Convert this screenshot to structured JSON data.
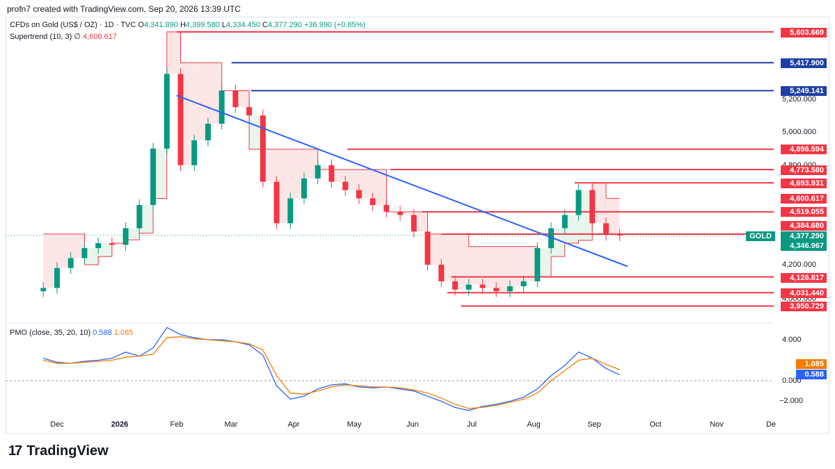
{
  "header": {
    "caption": "profn7 created with TradingView.com, Sep 20, 2026 13:39 UTC"
  },
  "legend": {
    "symbol": "CFDs on Gold (US$ / OZ) · 1D · TVC",
    "open_label": "O",
    "open": "4,341.890",
    "high_label": "H",
    "high": "4,399.580",
    "low_label": "L",
    "low": "4,334.450",
    "close_label": "C",
    "close": "4,377.290",
    "change": "+36.990 (+0.85%)",
    "supertrend_name": "Supertrend (10, 3)",
    "supertrend_symbol": "∅",
    "supertrend_value": "4,600.617",
    "pmo_name": "PMO (close, 35, 20, 10)",
    "pmo_value": "0.588",
    "pmo_signal": "1.085"
  },
  "price_axis_ticks": [
    "5,200.000",
    "5,000.000",
    "4,800.000",
    "4,200.000",
    "4,000.000"
  ],
  "price_tags": [
    {
      "text": "5,603.669",
      "color": "#f23645"
    },
    {
      "text": "5,417.900",
      "color": "#1e3ea8"
    },
    {
      "text": "5,249.141",
      "color": "#1e3ea8"
    },
    {
      "text": "4,896.594",
      "color": "#f23645"
    },
    {
      "text": "4,773.580",
      "color": "#f23645"
    },
    {
      "text": "4,693.931",
      "color": "#f23645"
    },
    {
      "text": "4,600.617",
      "color": "#f23645"
    },
    {
      "text": "4,519.055",
      "color": "#f23645"
    },
    {
      "text": "4,384.680",
      "color": "#f23645"
    },
    {
      "text": "4,377.290",
      "color": "#089981"
    },
    {
      "text": "4,346.967",
      "color": "#089981"
    },
    {
      "text": "4,126.817",
      "color": "#f23645"
    },
    {
      "text": "4,031.440",
      "color": "#f23645"
    },
    {
      "text": "3,950.729",
      "color": "#f23645"
    }
  ],
  "symbol_tag": "GOLD",
  "pmo_axis_ticks": [
    "4.000",
    "0.000",
    "−2.000"
  ],
  "pmo_tags": [
    {
      "text": "1.085",
      "color": "#f57c00"
    },
    {
      "text": "0.588",
      "color": "#2962ff"
    }
  ],
  "months": [
    "Dec",
    "2026",
    "Feb",
    "Mar",
    "Apr",
    "May",
    "Jun",
    "Jul",
    "Aug",
    "Sep",
    "Oct",
    "Nov",
    "De"
  ],
  "footer": {
    "logo_mark": "17",
    "brand": "TradingView"
  },
  "colors": {
    "up": "#089981",
    "down": "#f23645",
    "trendline": "#2962ff",
    "pmo": "#2962ff",
    "pmo_signal": "#f57c00",
    "supertrend_up_fill": "#e6f4ea",
    "supertrend_down_fill": "#fde3e3"
  },
  "chart_data": [
    {
      "type": "candlestick",
      "title": "CFDs on Gold (US$ / OZ) · 1D · TVC",
      "ylim": [
        3900,
        5650
      ],
      "x": [
        "2025-11-24",
        "2025-12-01",
        "2025-12-08",
        "2025-12-15",
        "2025-12-22",
        "2025-12-29",
        "2026-01-05",
        "2026-01-12",
        "2026-01-19",
        "2026-01-26",
        "2026-02-02",
        "2026-02-09",
        "2026-02-16",
        "2026-02-23",
        "2026-03-02",
        "2026-03-09",
        "2026-03-16",
        "2026-03-23",
        "2026-03-30",
        "2026-04-06",
        "2026-04-13",
        "2026-04-20",
        "2026-04-27",
        "2026-05-04",
        "2026-05-11",
        "2026-05-18",
        "2026-05-25",
        "2026-06-01",
        "2026-06-08",
        "2026-06-15",
        "2026-06-22",
        "2026-06-29",
        "2026-07-06",
        "2026-07-13",
        "2026-07-20",
        "2026-07-27",
        "2026-08-03",
        "2026-08-10",
        "2026-08-17",
        "2026-08-24",
        "2026-08-31",
        "2026-09-07",
        "2026-09-14"
      ],
      "close": [
        4060,
        4180,
        4240,
        4300,
        4330,
        4320,
        4420,
        4560,
        4900,
        5350,
        4800,
        4950,
        5050,
        5250,
        5150,
        5100,
        4700,
        4450,
        4600,
        4720,
        4800,
        4700,
        4650,
        4600,
        4560,
        4520,
        4500,
        4400,
        4200,
        4100,
        4050,
        4080,
        4060,
        4040,
        4070,
        4100,
        4300,
        4420,
        4500,
        4650,
        4450,
        4380,
        4377.29
      ],
      "supertrend": [
        4384.68,
        4384.68,
        4384.68,
        4200,
        4250,
        4330,
        4350,
        4390,
        4600,
        5603.669,
        5417.9,
        5417.9,
        5417.9,
        5249.141,
        5249.141,
        4896.594,
        4896.594,
        4896.594,
        4896.594,
        4896.594,
        4773.58,
        4773.58,
        4773.58,
        4773.58,
        4773.58,
        4519.055,
        4519.055,
        4519.055,
        4384.68,
        4384.68,
        4384.68,
        4310,
        4310,
        4310,
        4310,
        4310,
        4126.817,
        4250,
        4330,
        4346.967,
        4693.931,
        4600.617,
        4600.617
      ],
      "trendline": {
        "x": [
          "2026-01-31",
          "2026-09-18"
        ],
        "y": [
          5220,
          4190
        ]
      }
    },
    {
      "type": "line",
      "title": "PMO (close, 35, 20, 10)",
      "ylim": [
        -3,
        5
      ],
      "x": [
        "2025-11-24",
        "2025-12-01",
        "2025-12-08",
        "2025-12-15",
        "2025-12-22",
        "2025-12-29",
        "2026-01-05",
        "2026-01-12",
        "2026-01-19",
        "2026-01-26",
        "2026-02-02",
        "2026-02-09",
        "2026-02-16",
        "2026-02-23",
        "2026-03-02",
        "2026-03-09",
        "2026-03-16",
        "2026-03-23",
        "2026-03-30",
        "2026-04-06",
        "2026-04-13",
        "2026-04-20",
        "2026-04-27",
        "2026-05-04",
        "2026-05-11",
        "2026-05-18",
        "2026-05-25",
        "2026-06-01",
        "2026-06-08",
        "2026-06-15",
        "2026-06-22",
        "2026-06-29",
        "2026-07-06",
        "2026-07-13",
        "2026-07-20",
        "2026-07-27",
        "2026-08-03",
        "2026-08-10",
        "2026-08-17",
        "2026-08-24",
        "2026-08-31",
        "2026-09-07",
        "2026-09-14"
      ],
      "series": [
        {
          "name": "PMO",
          "values": [
            2.2,
            1.8,
            1.7,
            1.9,
            2.0,
            2.2,
            2.8,
            2.4,
            3.2,
            5.2,
            4.5,
            4.2,
            4.0,
            4.0,
            3.8,
            3.5,
            2.5,
            -0.5,
            -1.8,
            -1.5,
            -0.8,
            -0.4,
            -0.3,
            -0.6,
            -0.7,
            -0.6,
            -0.8,
            -1.0,
            -1.5,
            -2.0,
            -2.6,
            -2.9,
            -2.5,
            -2.3,
            -2.0,
            -1.6,
            -0.8,
            0.5,
            1.5,
            2.8,
            2.2,
            1.2,
            0.588
          ]
        },
        {
          "name": "Signal",
          "values": [
            2.0,
            1.7,
            1.7,
            1.8,
            1.9,
            2.0,
            2.3,
            2.4,
            2.6,
            4.2,
            4.3,
            4.1,
            4.0,
            3.9,
            3.8,
            3.6,
            3.0,
            0.5,
            -1.2,
            -1.3,
            -1.0,
            -0.6,
            -0.4,
            -0.5,
            -0.6,
            -0.6,
            -0.7,
            -0.9,
            -1.2,
            -1.7,
            -2.3,
            -2.7,
            -2.6,
            -2.4,
            -2.1,
            -1.8,
            -1.2,
            0.0,
            1.0,
            2.0,
            2.2,
            1.6,
            1.085
          ]
        }
      ]
    }
  ]
}
